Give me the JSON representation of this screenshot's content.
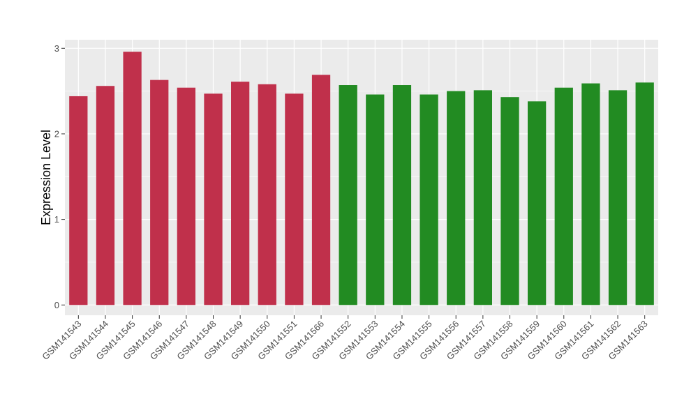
{
  "chart_data": {
    "type": "bar",
    "title": "",
    "xlabel": "",
    "ylabel": "Expression Level",
    "ylim": [
      -0.12,
      3.1
    ],
    "yticks": [
      0,
      1,
      2,
      3
    ],
    "grid": true,
    "categories": [
      "GSM141543",
      "GSM141544",
      "GSM141545",
      "GSM141546",
      "GSM141547",
      "GSM141548",
      "GSM141549",
      "GSM141550",
      "GSM141551",
      "GSM141566",
      "GSM141552",
      "GSM141553",
      "GSM141554",
      "GSM141555",
      "GSM141556",
      "GSM141557",
      "GSM141558",
      "GSM141559",
      "GSM141560",
      "GSM141561",
      "GSM141562",
      "GSM141563"
    ],
    "values": [
      2.44,
      2.56,
      2.96,
      2.63,
      2.54,
      2.47,
      2.61,
      2.58,
      2.47,
      2.69,
      2.57,
      2.46,
      2.57,
      2.46,
      2.5,
      2.51,
      2.43,
      2.38,
      2.54,
      2.59,
      2.51,
      2.6
    ],
    "bar_colors": [
      "#c0304b",
      "#c0304b",
      "#c0304b",
      "#c0304b",
      "#c0304b",
      "#c0304b",
      "#c0304b",
      "#c0304b",
      "#c0304b",
      "#c0304b",
      "#228b22",
      "#228b22",
      "#228b22",
      "#228b22",
      "#228b22",
      "#228b22",
      "#228b22",
      "#228b22",
      "#228b22",
      "#228b22",
      "#228b22",
      "#228b22"
    ],
    "panel_background": "#ebebeb",
    "gridline_color": "#ffffff"
  }
}
